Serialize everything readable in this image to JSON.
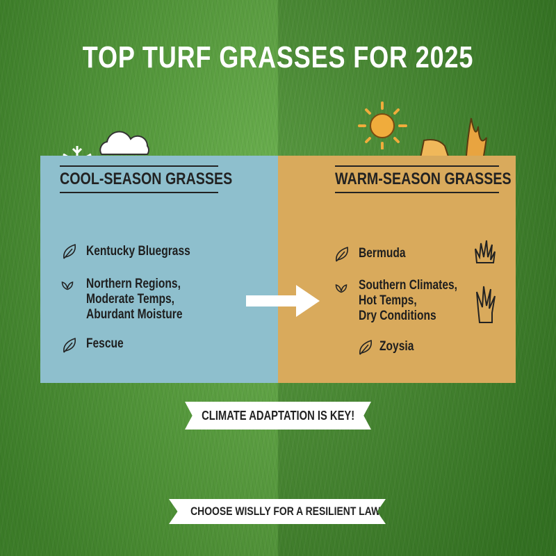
{
  "title": "TOP TURF GRASSES FOR 2025",
  "cool": {
    "heading": "COOL-SEASON GRASSES",
    "items": [
      {
        "icon": "leaf-icon",
        "lines": [
          "Kentucky Bluegrass"
        ]
      },
      {
        "icon": "sprout-icon",
        "lines": [
          "Northern Regions,",
          "Moderate Temps,",
          "Aburdant Moisture"
        ]
      },
      {
        "icon": "leaf-icon",
        "lines": [
          "Fescue"
        ]
      }
    ],
    "color": "#8ebfcd"
  },
  "warm": {
    "heading": "WARM-SEASON GRASSES",
    "items": [
      {
        "icon": "leaf-icon",
        "lines": [
          "Bermuda"
        ]
      },
      {
        "icon": "sprout-icon",
        "lines": [
          "Southern Climates,",
          "Hot Temps,",
          "Dry Conditions"
        ]
      },
      {
        "icon": "leaf-icon",
        "lines": [
          "Zoysia"
        ]
      }
    ],
    "color": "#d9aa5c"
  },
  "banners": [
    "CLIMATE ADAPTATION IS KEY!",
    "CHOOSE WISLLY FOR A RESILIENT LAWN"
  ]
}
